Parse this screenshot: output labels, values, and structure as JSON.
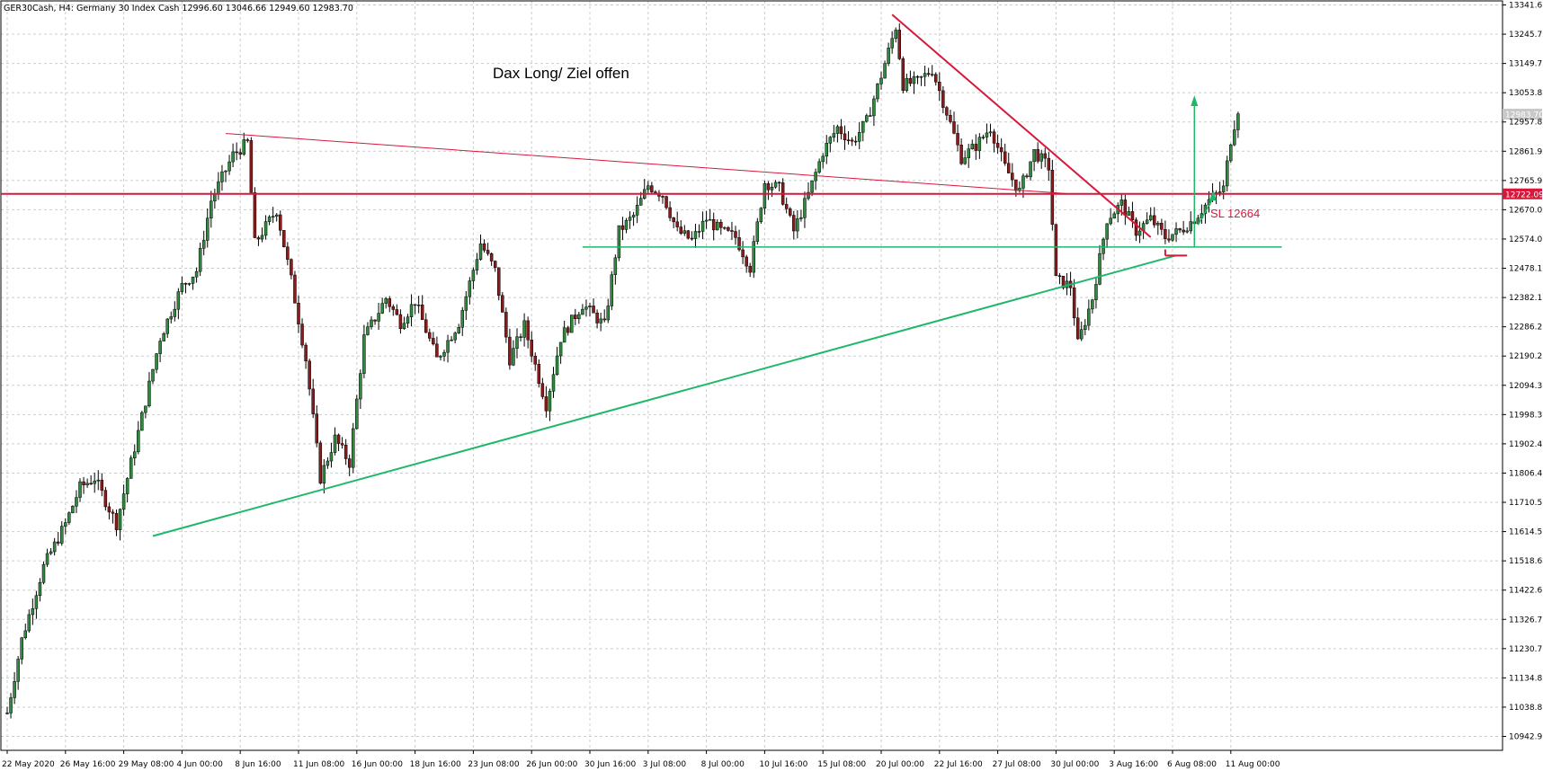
{
  "header": {
    "symbol": "GER30Cash",
    "timeframe": "H4",
    "description": "Germany 30 Index Cash",
    "open": "12996.60",
    "high": "13046.66",
    "low": "12949.60",
    "close": "12983.70"
  },
  "colors": {
    "bull": "#2e8b3e",
    "bear": "#8b1a1a",
    "resistance": "#d4193b",
    "support": "#1fb86b",
    "grid": "#c9cdd3"
  },
  "chart_data": {
    "type": "candlestick",
    "title": "",
    "annotation": "Dax Long/ Ziel offen",
    "stop_loss_label": "SL 12664",
    "ylim": [
      10870,
      13370
    ],
    "price_ticks": [
      "13341.67",
      "13245.72",
      "13149.77",
      "13053.82",
      "12957.87",
      "12861.92",
      "12765.97",
      "12670.02",
      "12574.07",
      "12478.12",
      "12382.17",
      "12286.22",
      "12190.27",
      "12094.32",
      "11998.37",
      "11902.42",
      "11806.47",
      "11710.52",
      "11614.57",
      "11518.62",
      "11422.67",
      "11326.72",
      "11230.77",
      "11134.82",
      "11038.87",
      "10942.92"
    ],
    "price_tick_values": [
      13341.67,
      13245.72,
      13149.77,
      13053.82,
      12957.87,
      12861.92,
      12765.97,
      12670.02,
      12574.07,
      12478.12,
      12382.17,
      12286.22,
      12190.27,
      12094.32,
      11998.37,
      11902.42,
      11806.47,
      11710.52,
      11614.57,
      11518.62,
      11422.67,
      11326.72,
      11230.77,
      11134.82,
      11038.87,
      10942.92
    ],
    "time_ticks": [
      "22 May 2020",
      "26 May 16:00",
      "29 May 08:00",
      "4 Jun 00:00",
      "8 Jun 16:00",
      "11 Jun 08:00",
      "16 Jun 00:00",
      "18 Jun 16:00",
      "23 Jun 08:00",
      "26 Jun 00:00",
      "30 Jun 16:00",
      "3 Jul 08:00",
      "8 Jul 00:00",
      "10 Jul 16:00",
      "15 Jul 08:00",
      "20 Jul 00:00",
      "22 Jul 16:00",
      "27 Jul 08:00",
      "30 Jul 00:00",
      "3 Aug 16:00",
      "6 Aug 08:00",
      "11 Aug 00:00"
    ],
    "time_tick_bars": [
      0,
      16,
      32,
      48,
      64,
      80,
      96,
      112,
      128,
      144,
      160,
      176,
      192,
      208,
      224,
      240,
      256,
      272,
      288,
      304,
      320,
      336
    ],
    "horizontal_level": {
      "label": "12722.09",
      "value": 12722.09
    },
    "current_price": {
      "label": "12983.70",
      "value": 12983.7
    },
    "anchors": [
      [
        0,
        11020
      ],
      [
        4,
        11260
      ],
      [
        10,
        11500
      ],
      [
        16,
        11640
      ],
      [
        20,
        11760
      ],
      [
        24,
        11790
      ],
      [
        30,
        11640
      ],
      [
        36,
        11940
      ],
      [
        42,
        12250
      ],
      [
        48,
        12420
      ],
      [
        52,
        12470
      ],
      [
        56,
        12700
      ],
      [
        62,
        12850
      ],
      [
        66,
        12890
      ],
      [
        68,
        12560
      ],
      [
        74,
        12670
      ],
      [
        78,
        12440
      ],
      [
        82,
        12180
      ],
      [
        86,
        11790
      ],
      [
        90,
        11920
      ],
      [
        94,
        11840
      ],
      [
        98,
        12250
      ],
      [
        104,
        12380
      ],
      [
        108,
        12300
      ],
      [
        112,
        12370
      ],
      [
        118,
        12180
      ],
      [
        124,
        12300
      ],
      [
        130,
        12560
      ],
      [
        134,
        12470
      ],
      [
        138,
        12180
      ],
      [
        142,
        12290
      ],
      [
        148,
        12030
      ],
      [
        152,
        12250
      ],
      [
        158,
        12360
      ],
      [
        164,
        12290
      ],
      [
        168,
        12600
      ],
      [
        172,
        12650
      ],
      [
        176,
        12750
      ],
      [
        180,
        12720
      ],
      [
        184,
        12600
      ],
      [
        188,
        12570
      ],
      [
        192,
        12640
      ],
      [
        196,
        12600
      ],
      [
        200,
        12580
      ],
      [
        204,
        12480
      ],
      [
        208,
        12760
      ],
      [
        212,
        12740
      ],
      [
        216,
        12600
      ],
      [
        220,
        12720
      ],
      [
        224,
        12860
      ],
      [
        228,
        12940
      ],
      [
        232,
        12890
      ],
      [
        236,
        12960
      ],
      [
        240,
        13110
      ],
      [
        244,
        13270
      ],
      [
        246,
        13080
      ],
      [
        250,
        13090
      ],
      [
        254,
        13130
      ],
      [
        258,
        12990
      ],
      [
        262,
        12840
      ],
      [
        266,
        12880
      ],
      [
        270,
        12940
      ],
      [
        274,
        12810
      ],
      [
        278,
        12730
      ],
      [
        282,
        12860
      ],
      [
        286,
        12810
      ],
      [
        288,
        12440
      ],
      [
        292,
        12420
      ],
      [
        294,
        12230
      ],
      [
        298,
        12380
      ],
      [
        302,
        12640
      ],
      [
        306,
        12690
      ],
      [
        310,
        12600
      ],
      [
        314,
        12640
      ],
      [
        318,
        12580
      ],
      [
        322,
        12600
      ],
      [
        326,
        12640
      ],
      [
        330,
        12700
      ],
      [
        334,
        12740
      ],
      [
        336,
        12900
      ],
      [
        338,
        13000
      ]
    ],
    "support_trendline": [
      [
        40,
        11600
      ],
      [
        321,
        12520
      ]
    ],
    "resistance_trendline": [
      [
        60,
        12920
      ],
      [
        292,
        12722
      ]
    ],
    "falling_trendline": [
      [
        243,
        13310
      ],
      [
        314,
        12580
      ]
    ],
    "support_horizontal": [
      [
        158,
        12548
      ],
      [
        350,
        12548
      ]
    ]
  }
}
